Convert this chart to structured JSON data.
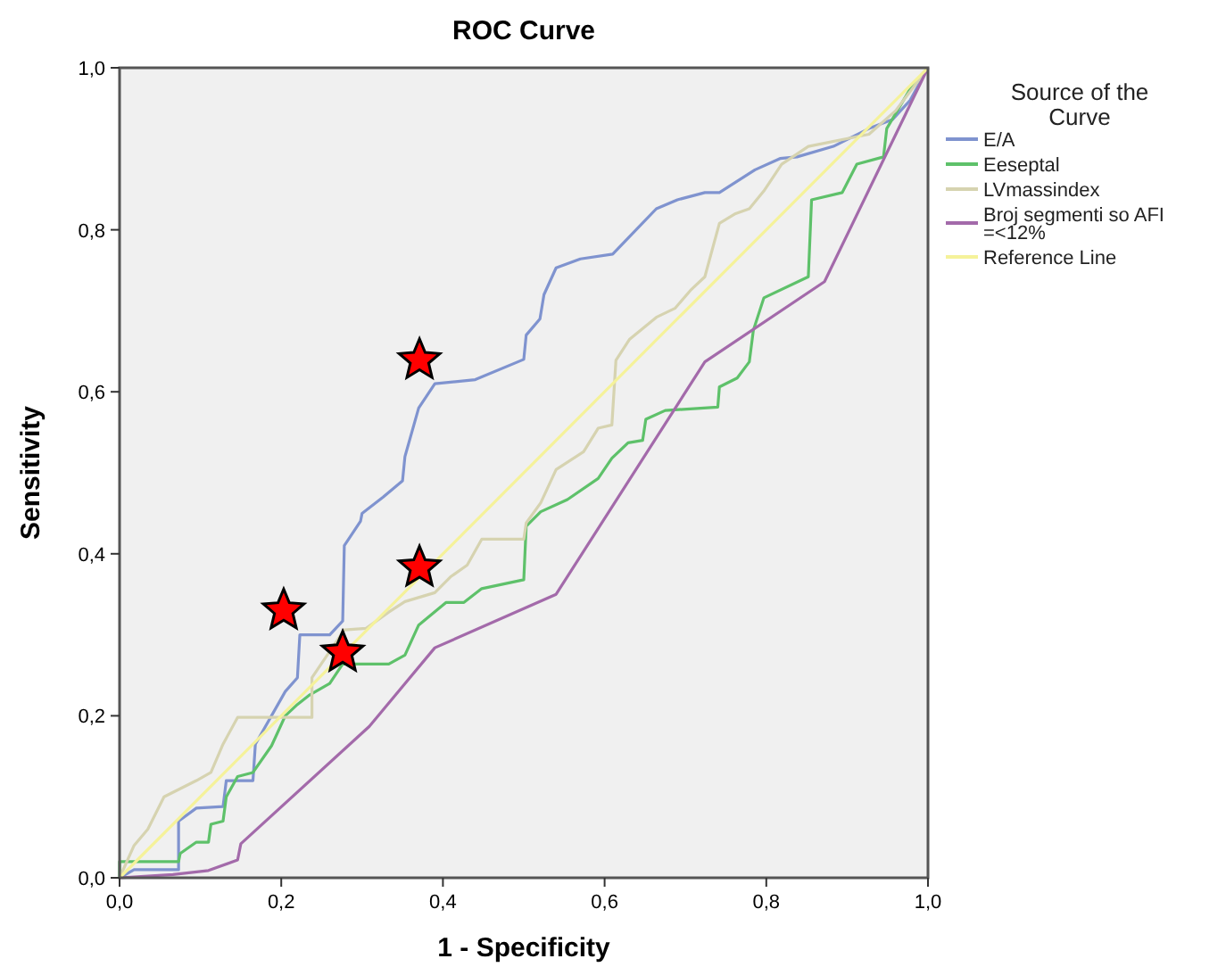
{
  "chart_data": {
    "type": "line",
    "title": "ROC Curve",
    "xlabel": "1 - Specificity",
    "ylabel": "Sensitivity",
    "legend_title": "Source of the Curve",
    "legend": "right",
    "grid": false,
    "marker": "none",
    "xlim": [
      0,
      1
    ],
    "ylim": [
      0,
      1
    ],
    "xticks": [
      {
        "value": 0,
        "label": "0,0"
      },
      {
        "value": 0.2,
        "label": "0,2"
      },
      {
        "value": 0.4,
        "label": "0,4"
      },
      {
        "value": 0.6,
        "label": "0,6"
      },
      {
        "value": 0.8,
        "label": "0,8"
      },
      {
        "value": 1,
        "label": "1,0"
      }
    ],
    "yticks": [
      {
        "value": 0,
        "label": "0,0"
      },
      {
        "value": 0.2,
        "label": "0,2"
      },
      {
        "value": 0.4,
        "label": "0,4"
      },
      {
        "value": 0.6,
        "label": "0,6"
      },
      {
        "value": 0.8,
        "label": "0,8"
      },
      {
        "value": 1,
        "label": "1,0"
      }
    ],
    "series": [
      {
        "name": "E/A",
        "color": "#7f93cf",
        "x": [
          0,
          0.018,
          0.073,
          0.073,
          0.095,
          0.128,
          0.132,
          0.165,
          0.168,
          0.205,
          0.22,
          0.223,
          0.26,
          0.276,
          0.278,
          0.298,
          0.3,
          0.326,
          0.35,
          0.353,
          0.37,
          0.39,
          0.44,
          0.5,
          0.503,
          0.52,
          0.525,
          0.54,
          0.57,
          0.61,
          0.664,
          0.69,
          0.724,
          0.742,
          0.786,
          0.817,
          0.838,
          0.883,
          0.927,
          0.956,
          0.978,
          1
        ],
        "values": [
          0,
          0.01,
          0.01,
          0.07,
          0.086,
          0.088,
          0.12,
          0.12,
          0.165,
          0.23,
          0.247,
          0.3,
          0.3,
          0.317,
          0.41,
          0.44,
          0.45,
          0.47,
          0.49,
          0.52,
          0.58,
          0.61,
          0.615,
          0.64,
          0.67,
          0.69,
          0.72,
          0.753,
          0.764,
          0.77,
          0.826,
          0.837,
          0.846,
          0.846,
          0.874,
          0.888,
          0.89,
          0.903,
          0.925,
          0.936,
          0.96,
          1
        ]
      },
      {
        "name": "Eeseptal",
        "color": "#5ec16a",
        "x": [
          0,
          0,
          0.018,
          0.073,
          0.075,
          0.095,
          0.11,
          0.113,
          0.128,
          0.132,
          0.146,
          0.165,
          0.188,
          0.205,
          0.22,
          0.234,
          0.26,
          0.276,
          0.333,
          0.353,
          0.37,
          0.404,
          0.426,
          0.448,
          0.5,
          0.503,
          0.521,
          0.554,
          0.592,
          0.609,
          0.629,
          0.647,
          0.651,
          0.675,
          0.74,
          0.742,
          0.764,
          0.779,
          0.784,
          0.797,
          0.852,
          0.856,
          0.894,
          0.912,
          0.945,
          0.949,
          0.978,
          1
        ],
        "values": [
          0,
          0.02,
          0.02,
          0.02,
          0.03,
          0.044,
          0.044,
          0.066,
          0.07,
          0.1,
          0.125,
          0.13,
          0.163,
          0.2,
          0.214,
          0.225,
          0.24,
          0.264,
          0.264,
          0.275,
          0.312,
          0.34,
          0.34,
          0.357,
          0.368,
          0.434,
          0.452,
          0.467,
          0.493,
          0.518,
          0.537,
          0.54,
          0.566,
          0.577,
          0.581,
          0.606,
          0.617,
          0.637,
          0.676,
          0.716,
          0.742,
          0.837,
          0.846,
          0.881,
          0.89,
          0.925,
          0.974,
          1
        ]
      },
      {
        "name": "LVmassindex",
        "color": "#d6d3b0",
        "x": [
          0,
          0.018,
          0.035,
          0.055,
          0.095,
          0.113,
          0.128,
          0.146,
          0.238,
          0.238,
          0.278,
          0.305,
          0.333,
          0.353,
          0.39,
          0.41,
          0.43,
          0.448,
          0.5,
          0.503,
          0.521,
          0.54,
          0.574,
          0.592,
          0.609,
          0.614,
          0.631,
          0.664,
          0.687,
          0.706,
          0.724,
          0.742,
          0.762,
          0.779,
          0.797,
          0.819,
          0.852,
          0.927,
          0.96,
          1
        ],
        "values": [
          0,
          0.04,
          0.06,
          0.1,
          0.12,
          0.13,
          0.165,
          0.198,
          0.198,
          0.247,
          0.306,
          0.308,
          0.328,
          0.341,
          0.352,
          0.372,
          0.386,
          0.418,
          0.418,
          0.438,
          0.463,
          0.504,
          0.526,
          0.555,
          0.559,
          0.639,
          0.665,
          0.692,
          0.703,
          0.725,
          0.742,
          0.808,
          0.82,
          0.826,
          0.848,
          0.881,
          0.903,
          0.918,
          0.947,
          1
        ]
      },
      {
        "name": "Broj segmenti so AFI =<12%",
        "color": "#a36aaa",
        "x": [
          0,
          0.066,
          0.11,
          0.146,
          0.15,
          0.309,
          0.39,
          0.54,
          0.724,
          0.872,
          1
        ],
        "values": [
          0,
          0.004,
          0.009,
          0.022,
          0.042,
          0.187,
          0.284,
          0.35,
          0.637,
          0.736,
          1
        ]
      },
      {
        "name": "Reference Line",
        "color": "#f5f29a",
        "x": [
          0,
          1
        ],
        "values": [
          0,
          1
        ]
      },
      {
        "type": "scatter",
        "marker": "star",
        "color": "#ff0000",
        "x": [
          0.371,
          0.203,
          0.276,
          0.371
        ],
        "values": [
          0.639,
          0.33,
          0.278,
          0.383
        ]
      }
    ]
  }
}
